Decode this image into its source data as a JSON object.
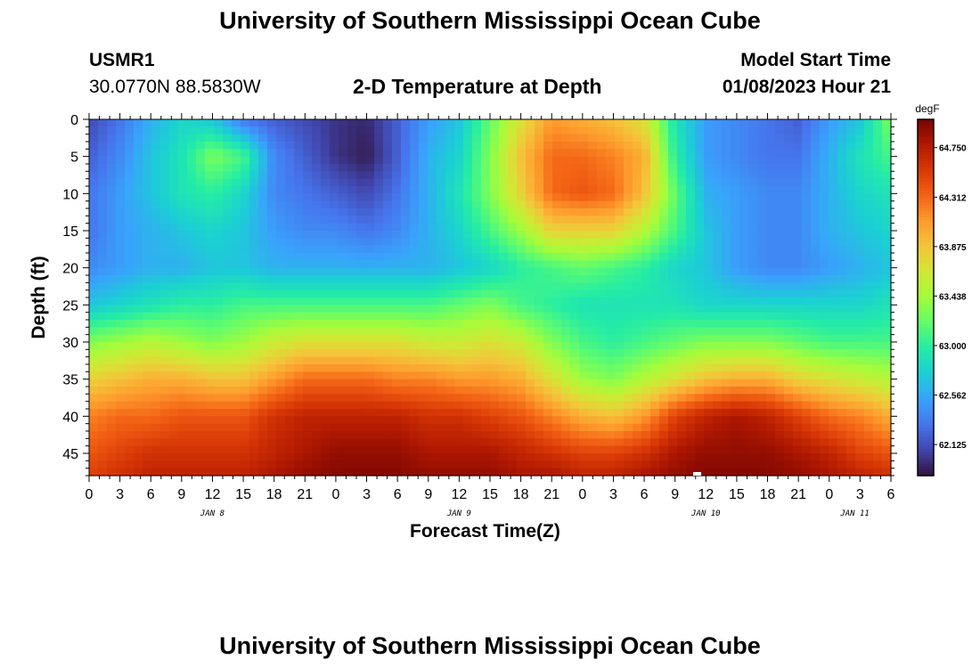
{
  "page": {
    "title_top": "University of Southern Mississippi Ocean Cube",
    "title_bottom": "University of Southern Mississippi Ocean Cube",
    "station_id": "USMR1",
    "station_coords": "30.0770N  88.5830W",
    "plot_title": "2-D Temperature at Depth",
    "model_start_label": "Model Start Time",
    "model_start_value": "01/08/2023 Hour 21"
  },
  "chart_data": {
    "type": "heatmap",
    "title": "2-D Temperature at Depth",
    "xlabel": "Forecast Time(Z)",
    "ylabel": "Depth (ft)",
    "colorbar_unit": "degF",
    "colorbar_ticks": [
      "64.750",
      "64.312",
      "63.875",
      "63.438",
      "63.000",
      "62.562",
      "62.125"
    ],
    "colorbar_range": [
      61.85,
      65.0
    ],
    "x_range_hours": [
      0,
      78
    ],
    "x_tick_labels": [
      "0",
      "3",
      "6",
      "9",
      "12",
      "15",
      "18",
      "21",
      "0",
      "3",
      "6",
      "9",
      "12",
      "15",
      "18",
      "21",
      "0",
      "3",
      "6",
      "9",
      "12",
      "15",
      "18",
      "21",
      "0",
      "3",
      "6"
    ],
    "date_labels": [
      "JAN 8",
      "JAN 9",
      "JAN 10",
      "JAN 11"
    ],
    "y_range_ft": [
      0,
      48
    ],
    "y_tick_labels": [
      "0",
      "5",
      "10",
      "15",
      "20",
      "25",
      "30",
      "35",
      "40",
      "45"
    ],
    "colormap": [
      "#30123b",
      "#4145ab",
      "#4675ed",
      "#39a2fc",
      "#1bcfd4",
      "#24eca6",
      "#61fc6c",
      "#a4fc3b",
      "#d1e834",
      "#f3c63a",
      "#fe9b2d",
      "#f36315",
      "#d93806",
      "#b11901",
      "#7a0402"
    ],
    "samples_x_hours": [
      0,
      3,
      6,
      9,
      12,
      15,
      18,
      21,
      24,
      27,
      30,
      33,
      36,
      39,
      42,
      45,
      48,
      51,
      54,
      57,
      60,
      63,
      66,
      69,
      72,
      75,
      78
    ],
    "samples_y_ft": [
      0,
      5,
      10,
      15,
      20,
      25,
      30,
      35,
      40,
      45,
      48
    ],
    "values": [
      [
        62.1,
        62.3,
        62.6,
        62.8,
        62.7,
        62.3,
        62.2,
        62.1,
        62.0,
        61.95,
        62.2,
        62.5,
        62.7,
        63.2,
        63.7,
        64.1,
        64.0,
        63.9,
        63.7,
        62.9,
        62.5,
        62.4,
        62.3,
        62.2,
        62.5,
        62.7,
        63.3
      ],
      [
        62.2,
        62.4,
        62.7,
        62.9,
        63.3,
        63.1,
        62.4,
        62.2,
        62.0,
        61.9,
        62.2,
        62.6,
        62.8,
        63.3,
        63.9,
        64.3,
        64.3,
        64.2,
        64.0,
        63.0,
        62.5,
        62.4,
        62.3,
        62.3,
        62.6,
        62.9,
        63.1
      ],
      [
        62.3,
        62.5,
        62.7,
        62.9,
        63.0,
        62.8,
        62.4,
        62.3,
        62.2,
        62.1,
        62.3,
        62.6,
        62.9,
        63.3,
        63.8,
        64.3,
        64.4,
        64.3,
        63.9,
        63.2,
        62.6,
        62.5,
        62.4,
        62.4,
        62.6,
        62.8,
        62.9
      ],
      [
        62.3,
        62.5,
        62.6,
        62.7,
        62.8,
        62.7,
        62.5,
        62.4,
        62.4,
        62.3,
        62.4,
        62.6,
        62.8,
        63.1,
        63.4,
        63.8,
        63.8,
        63.8,
        63.5,
        63.1,
        62.7,
        62.5,
        62.4,
        62.4,
        62.6,
        62.7,
        62.8
      ],
      [
        62.4,
        62.5,
        62.6,
        62.6,
        62.7,
        62.7,
        62.6,
        62.6,
        62.6,
        62.6,
        62.6,
        62.6,
        62.7,
        62.8,
        63.0,
        63.1,
        63.2,
        63.1,
        63.0,
        62.8,
        62.7,
        62.5,
        62.4,
        62.4,
        62.5,
        62.6,
        62.7
      ],
      [
        62.7,
        62.8,
        62.9,
        63.0,
        63.0,
        63.1,
        63.1,
        63.1,
        63.1,
        63.1,
        63.1,
        63.1,
        63.2,
        63.3,
        63.1,
        63.0,
        62.9,
        62.9,
        62.9,
        62.9,
        62.8,
        62.8,
        62.8,
        62.8,
        62.8,
        62.8,
        62.9
      ],
      [
        63.3,
        63.4,
        63.5,
        63.4,
        63.3,
        63.4,
        63.6,
        63.7,
        63.7,
        63.7,
        63.7,
        63.6,
        63.6,
        63.7,
        63.6,
        63.3,
        63.1,
        63.0,
        63.1,
        63.2,
        63.3,
        63.3,
        63.3,
        63.2,
        63.1,
        63.1,
        63.1
      ],
      [
        63.8,
        63.9,
        64.0,
        64.0,
        63.9,
        63.9,
        64.1,
        64.3,
        64.3,
        64.3,
        64.2,
        64.2,
        64.1,
        64.1,
        64.0,
        63.7,
        63.4,
        63.3,
        63.5,
        63.7,
        63.9,
        64.0,
        64.0,
        63.8,
        63.7,
        63.6,
        63.5
      ],
      [
        64.2,
        64.3,
        64.3,
        64.4,
        64.4,
        64.4,
        64.6,
        64.7,
        64.7,
        64.7,
        64.7,
        64.6,
        64.6,
        64.5,
        64.4,
        64.2,
        64.0,
        63.9,
        64.1,
        64.5,
        64.7,
        64.8,
        64.7,
        64.5,
        64.3,
        64.2,
        64.0
      ],
      [
        64.4,
        64.5,
        64.6,
        64.6,
        64.6,
        64.6,
        64.7,
        64.8,
        64.9,
        64.9,
        64.9,
        64.8,
        64.8,
        64.8,
        64.7,
        64.6,
        64.5,
        64.5,
        64.6,
        64.8,
        64.9,
        64.9,
        64.9,
        64.8,
        64.7,
        64.5,
        64.4
      ],
      [
        64.5,
        64.6,
        64.7,
        64.7,
        64.7,
        64.7,
        64.8,
        64.9,
        64.95,
        64.95,
        64.95,
        64.9,
        64.9,
        64.9,
        64.8,
        64.8,
        64.7,
        64.7,
        64.8,
        64.9,
        64.95,
        64.95,
        64.95,
        64.9,
        64.8,
        64.7,
        64.6
      ]
    ]
  }
}
